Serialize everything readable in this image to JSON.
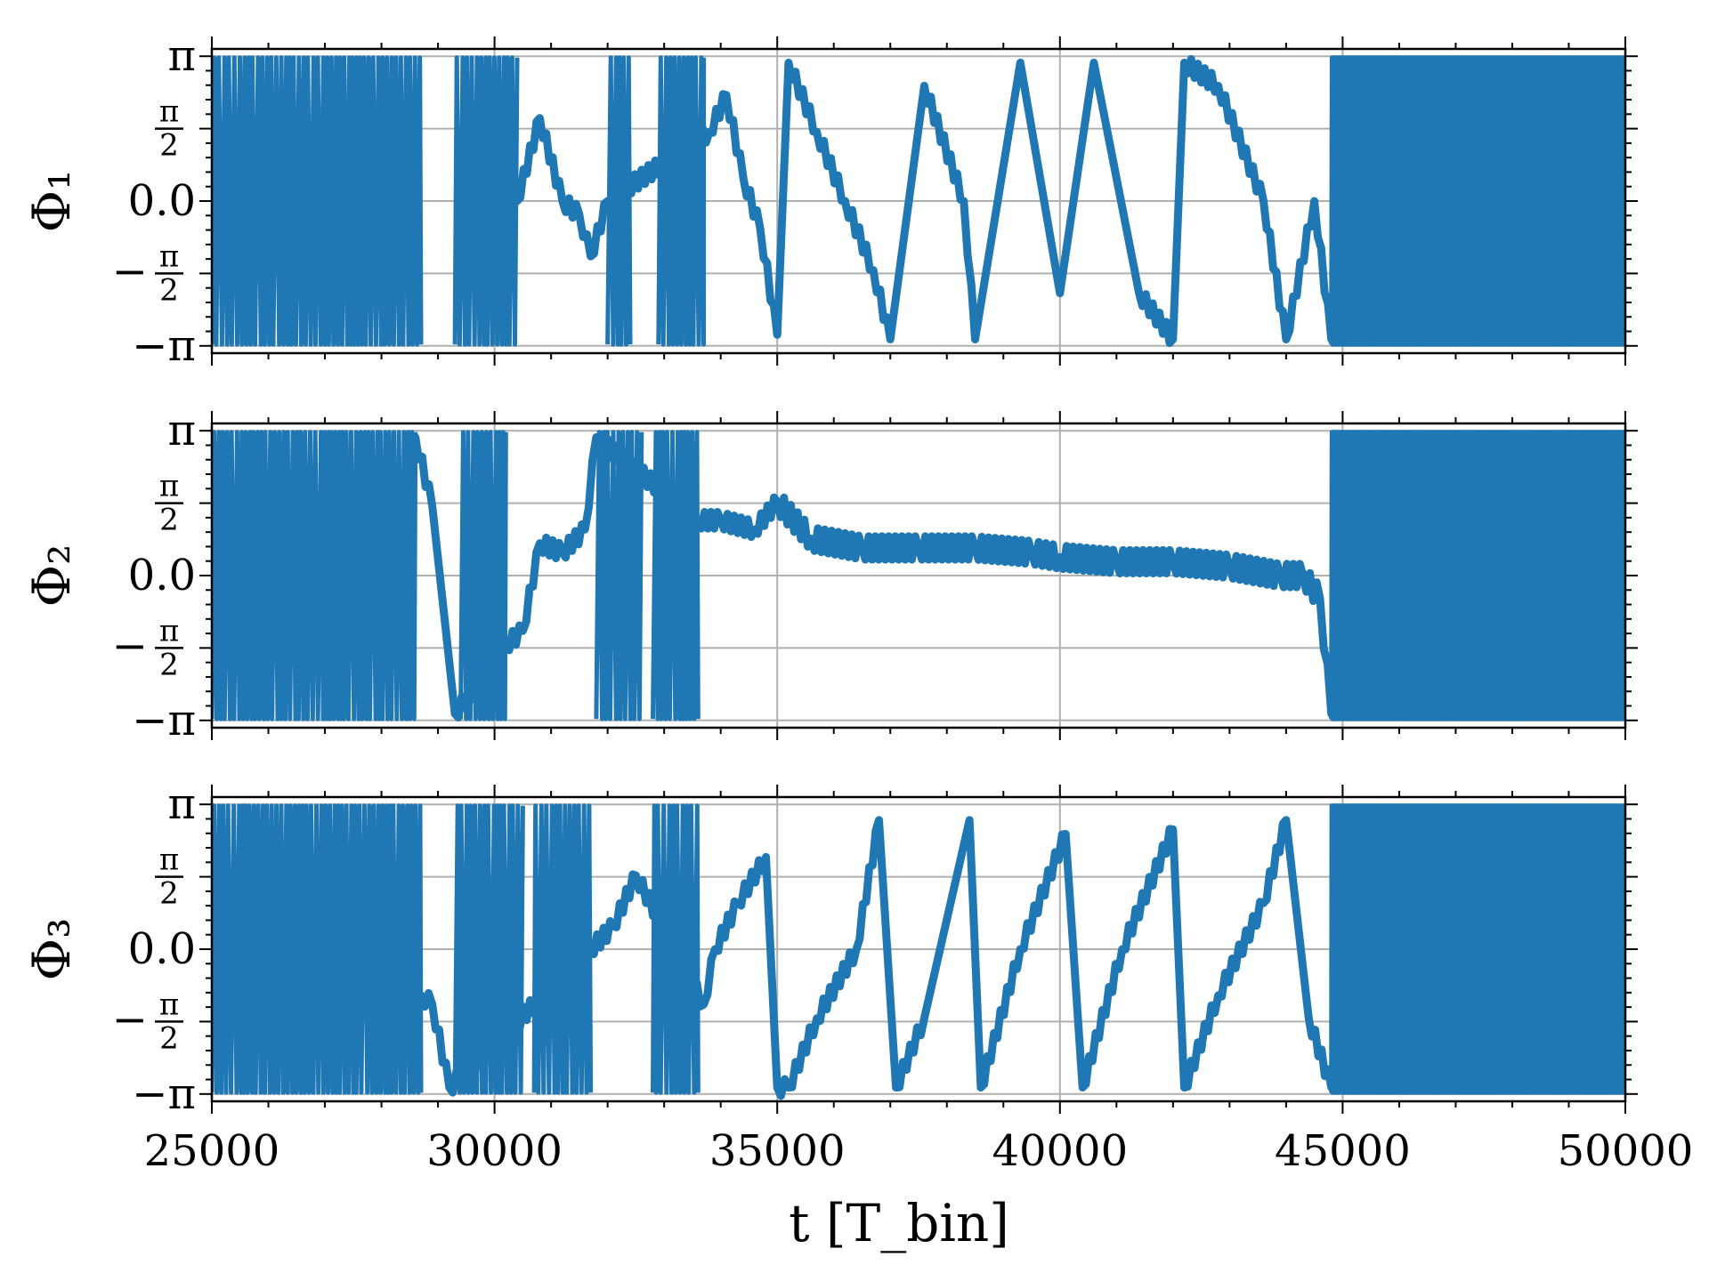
{
  "colors": {
    "series": "#1f77b4",
    "grid": "#b0b0b0",
    "axis": "#000000"
  },
  "chart_data": [
    {
      "type": "line",
      "ylabel": "Φ₁",
      "xlim": [
        25000,
        50000
      ],
      "ylim": [
        -3.3,
        3.3
      ],
      "y_ticks": [
        -3.1416,
        -1.5708,
        0,
        1.5708,
        3.1416
      ],
      "y_tick_labels": [
        "−π",
        "−π/2",
        "0.0",
        "π/2",
        "π"
      ],
      "grid": true,
      "phase_wrapping": true,
      "dense_segments": [
        [
          25000,
          28700
        ],
        [
          29300,
          30400
        ],
        [
          32000,
          32400
        ],
        [
          32900,
          33700
        ],
        [
          44800,
          50000
        ]
      ],
      "anchor_points": {
        "t": [
          30400,
          30800,
          31200,
          31500,
          31700,
          32000,
          33800,
          34100,
          34400,
          34700,
          35000,
          35200,
          35700,
          36200,
          36700,
          37000,
          37600,
          38300,
          38500,
          39300,
          40000,
          40600,
          41400,
          42000,
          42200,
          42800,
          43600,
          44000,
          44500,
          44800
        ],
        "phi": [
          0.0,
          1.8,
          0.0,
          -0.3,
          -1.2,
          0.0,
          1.5,
          2.3,
          0.5,
          -0.6,
          -2.9,
          3.0,
          1.5,
          0.0,
          -1.5,
          -3.0,
          2.5,
          0.0,
          -3.0,
          3.0,
          -2.0,
          3.0,
          -2.0,
          -3.0,
          3.0,
          2.5,
          0.0,
          -3.0,
          0.0,
          -3.0
        ]
      }
    },
    {
      "type": "line",
      "ylabel": "Φ₂",
      "xlim": [
        25000,
        50000
      ],
      "ylim": [
        -3.3,
        3.3
      ],
      "y_ticks": [
        -3.1416,
        -1.5708,
        0,
        1.5708,
        3.1416
      ],
      "y_tick_labels": [
        "−π",
        "−π/2",
        "0.0",
        "π/2",
        "π"
      ],
      "grid": true,
      "phase_wrapping": true,
      "dense_segments": [
        [
          25000,
          28600
        ],
        [
          29400,
          30200
        ],
        [
          31800,
          32600
        ],
        [
          32800,
          33600
        ],
        [
          44800,
          50000
        ]
      ],
      "anchor_points": {
        "t": [
          28600,
          28900,
          29300,
          30200,
          30500,
          30800,
          31200,
          31600,
          31800,
          33600,
          34000,
          34600,
          35000,
          35600,
          36500,
          37500,
          38500,
          39500,
          40000,
          41000,
          42000,
          43000,
          43900,
          44300,
          44600,
          44800
        ],
        "phi": [
          3.0,
          1.5,
          -3.0,
          -1.5,
          -1.2,
          0.7,
          0.5,
          1.0,
          3.0,
          1.2,
          1.2,
          1.0,
          1.6,
          0.8,
          0.6,
          0.6,
          0.6,
          0.5,
          0.4,
          0.3,
          0.3,
          0.2,
          0.0,
          0.0,
          -0.5,
          -3.0
        ]
      }
    },
    {
      "type": "line",
      "ylabel": "Φ₃",
      "xlim": [
        25000,
        50000
      ],
      "ylim": [
        -3.3,
        3.3
      ],
      "y_ticks": [
        -3.1416,
        -1.5708,
        0,
        1.5708,
        3.1416
      ],
      "y_tick_labels": [
        "−π",
        "−π/2",
        "0.0",
        "π/2",
        "π"
      ],
      "grid": true,
      "phase_wrapping": true,
      "dense_segments": [
        [
          25000,
          28700
        ],
        [
          29300,
          30500
        ],
        [
          30700,
          31700
        ],
        [
          32800,
          33600
        ],
        [
          44800,
          50000
        ]
      ],
      "anchor_points": {
        "t": [
          28700,
          28900,
          29200,
          31700,
          32100,
          32500,
          33700,
          33900,
          34300,
          34800,
          35000,
          35200,
          35700,
          36400,
          36800,
          37100,
          37600,
          38400,
          38600,
          39300,
          40100,
          40400,
          41100,
          42000,
          42200,
          42800,
          43600,
          44000,
          44400,
          44800
        ],
        "phi": [
          -1.0,
          -1.2,
          -3.0,
          0.0,
          0.5,
          1.6,
          -1.2,
          0.0,
          1.0,
          2.0,
          -3.0,
          -3.0,
          -1.5,
          0.0,
          2.8,
          -3.0,
          -1.5,
          2.8,
          -3.0,
          0.0,
          2.5,
          -3.0,
          0.0,
          2.6,
          -3.0,
          -1.0,
          1.0,
          2.8,
          -1.5,
          -3.0
        ]
      }
    }
  ],
  "x_ticks": [
    25000,
    30000,
    35000,
    40000,
    45000,
    50000
  ],
  "x_tick_labels": [
    "25000",
    "30000",
    "35000",
    "40000",
    "45000",
    "50000"
  ],
  "xlabel": "t [T_bin]"
}
